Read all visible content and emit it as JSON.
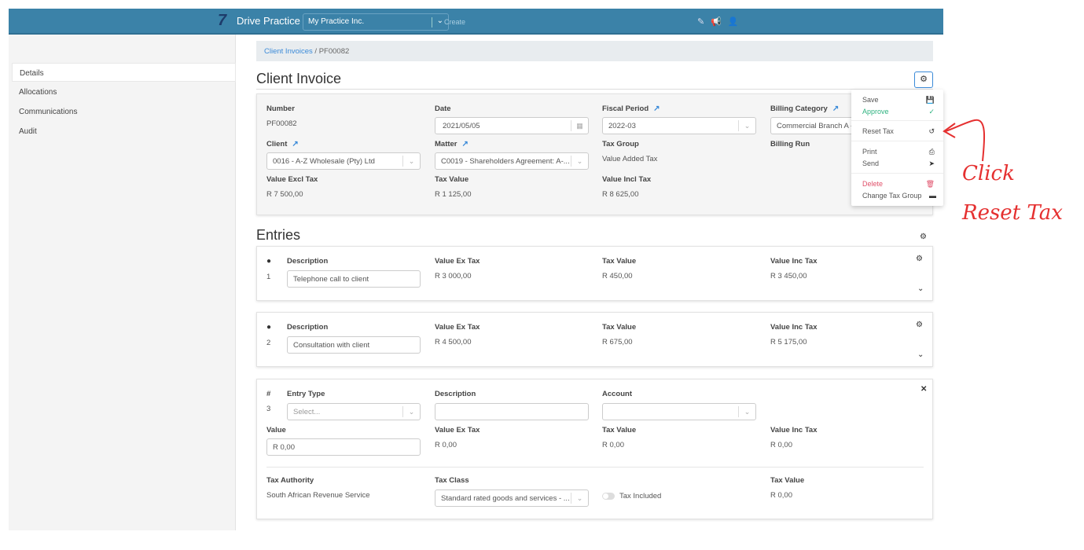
{
  "topbar": {
    "brand": "Drive Practice",
    "practice": "My Practice Inc.",
    "create": "Create"
  },
  "sidebar": {
    "items": [
      {
        "label": "Details"
      },
      {
        "label": "Allocations"
      },
      {
        "label": "Communications"
      },
      {
        "label": "Audit"
      }
    ]
  },
  "breadcrumb": {
    "parent": "Client Invoices",
    "separator": "/",
    "current": "PF00082"
  },
  "invoice": {
    "title": "Client Invoice",
    "number_label": "Number",
    "number": "PF00082",
    "date_label": "Date",
    "date": "2021/05/05",
    "fiscal_label": "Fiscal Period",
    "fiscal": "2022-03",
    "billing_cat_label": "Billing Category",
    "billing_cat": "Commercial Branch A -",
    "client_label": "Client",
    "client": "0016 - A-Z Wholesale (Pty) Ltd",
    "matter_label": "Matter",
    "matter": "C0019 - Shareholders Agreement: A-...",
    "taxgroup_label": "Tax Group",
    "taxgroup": "Value Added Tax",
    "billing_run_label": "Billing Run",
    "excl_label": "Value Excl Tax",
    "excl": "R 7 500,00",
    "tax_label": "Tax Value",
    "tax": "R 1 125,00",
    "incl_label": "Value Incl Tax",
    "incl": "R 8 625,00"
  },
  "menu": {
    "save": "Save",
    "approve": "Approve",
    "reset_tax": "Reset Tax",
    "print": "Print",
    "send": "Send",
    "delete": "Delete",
    "change_tax_group": "Change Tax Group",
    "approve_color": "#2fb380",
    "delete_color": "#e0506a"
  },
  "entries": {
    "title": "Entries",
    "items": [
      {
        "num": "1",
        "desc_label": "Description",
        "desc": "Telephone call to client",
        "ex_label": "Value Ex Tax",
        "ex": "R 3 000,00",
        "tax_label": "Tax Value",
        "tax": "R 450,00",
        "inc_label": "Value Inc Tax",
        "inc": "R 3 450,00"
      },
      {
        "num": "2",
        "desc_label": "Description",
        "desc": "Consultation with client",
        "ex_label": "Value Ex Tax",
        "ex": "R 4 500,00",
        "tax_label": "Tax Value",
        "tax": "R 675,00",
        "inc_label": "Value Inc Tax",
        "inc": "R 5 175,00"
      }
    ],
    "new": {
      "hash": "#",
      "num": "3",
      "type_label": "Entry Type",
      "type_placeholder": "Select...",
      "desc_label": "Description",
      "account_label": "Account",
      "value_label": "Value",
      "value": "R 0,00",
      "ex_label": "Value Ex Tax",
      "ex": "R 0,00",
      "tax_label": "Tax Value",
      "tax": "R 0,00",
      "inc_label": "Value Inc Tax",
      "inc": "R 0,00",
      "authority_label": "Tax Authority",
      "authority": "South African Revenue Service",
      "class_label": "Tax Class",
      "class": "Standard rated goods and services - ...",
      "tax_included": "Tax Included",
      "tax_value_label": "Tax Value",
      "tax_value": "R 0,00"
    }
  },
  "annotation": {
    "line1": "Click",
    "line2": "Reset Tax"
  }
}
